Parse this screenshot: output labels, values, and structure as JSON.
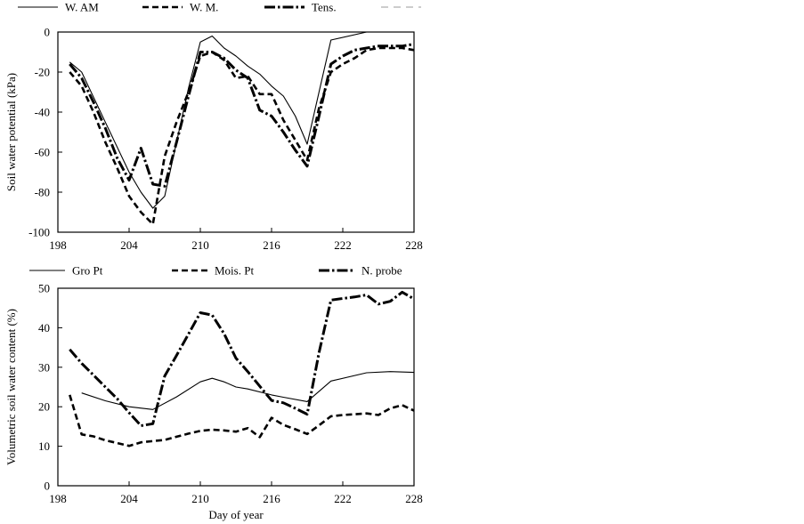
{
  "chart_data": [
    {
      "type": "line",
      "ylabel": "Soil water potential (kPa)",
      "xlabel": "",
      "xlim": [
        198,
        228
      ],
      "ylim": [
        -100,
        0
      ],
      "xticks": [
        198,
        204,
        210,
        216,
        222,
        228
      ],
      "xtick_labels": [
        "198",
        "204",
        "210",
        "216",
        "222",
        "228"
      ],
      "yticks": [
        0,
        -20,
        -40,
        -60,
        -80,
        -100
      ],
      "ytick_labels": [
        "0",
        "-20",
        "-40",
        "-60",
        "-80",
        "-100"
      ],
      "grid": false,
      "legend_position": "top",
      "series": [
        {
          "name": "W. AM",
          "style": "solid-thin",
          "x": [
            199,
            200,
            202,
            204,
            205,
            206,
            207,
            208,
            209,
            210,
            211,
            212,
            213,
            214,
            215,
            216,
            217,
            218,
            219,
            220,
            221,
            224,
            225,
            226,
            227,
            228
          ],
          "y": [
            -15,
            -20,
            -45,
            -70,
            -80,
            -88,
            -82,
            -55,
            -28,
            -5,
            -2,
            -8,
            -12,
            -17,
            -21,
            -27,
            -32,
            -42,
            -56,
            -30,
            -4,
            0,
            0,
            0,
            0,
            0
          ]
        },
        {
          "name": "W. M.",
          "style": "dashed",
          "x": [
            199,
            200,
            201,
            202,
            203,
            204,
            205,
            206,
            207,
            208,
            209,
            210,
            211,
            212,
            213,
            214,
            215,
            216,
            217,
            218,
            219,
            220,
            221,
            222,
            223,
            224,
            225,
            226,
            227,
            228
          ],
          "y": [
            -20,
            -27,
            -40,
            -55,
            -68,
            -82,
            -90,
            -96,
            -62,
            -45,
            -30,
            -12,
            -10,
            -14,
            -23,
            -22,
            -31,
            -31,
            -44,
            -54,
            -64,
            -38,
            -20,
            -16,
            -13,
            -9,
            -8,
            -8,
            -8,
            -9
          ]
        },
        {
          "name": "Tens.",
          "style": "dash-dot-thick",
          "x": [
            199,
            200,
            201,
            202,
            203,
            204,
            205,
            206,
            207,
            208,
            209,
            210,
            211,
            212,
            213,
            214,
            215,
            216,
            217,
            218,
            219,
            220,
            221,
            222,
            223,
            224,
            225,
            226,
            227,
            228
          ],
          "y": [
            -16,
            -23,
            -35,
            -48,
            -63,
            -74,
            -58,
            -76,
            -77,
            -55,
            -32,
            -10,
            -10,
            -13,
            -19,
            -23,
            -39,
            -42,
            -50,
            -59,
            -67,
            -42,
            -16,
            -12,
            -9,
            -8,
            -7,
            -7,
            -7,
            -6
          ]
        },
        {
          "name": "",
          "style": "dashed-light",
          "x": [],
          "y": []
        }
      ]
    },
    {
      "type": "line",
      "ylabel": "Volumetric soil water content (%)",
      "xlabel": "Day of year",
      "xlim": [
        198,
        228
      ],
      "ylim": [
        0,
        50
      ],
      "xticks": [
        198,
        204,
        210,
        216,
        222,
        228
      ],
      "xtick_labels": [
        "198",
        "204",
        "210",
        "216",
        "222",
        "228"
      ],
      "yticks": [
        0,
        10,
        20,
        30,
        40,
        50
      ],
      "ytick_labels": [
        "0",
        "10",
        "20",
        "30",
        "40",
        "50"
      ],
      "grid": false,
      "legend_position": "top",
      "series": [
        {
          "name": "Gro Pt",
          "style": "solid-thin",
          "x": [
            200,
            202,
            204,
            206,
            208,
            210,
            211,
            212,
            213,
            214,
            216,
            217,
            219,
            221,
            224,
            226,
            228
          ],
          "y": [
            23.5,
            21.5,
            20,
            19.3,
            22.5,
            26.3,
            27.2,
            26.3,
            25,
            24.5,
            23,
            22.4,
            21.3,
            26.5,
            28.6,
            28.9,
            28.7
          ]
        },
        {
          "name": "Mois. Pt",
          "style": "dashed",
          "x": [
            199,
            200,
            201,
            202,
            203,
            204,
            205,
            206,
            207,
            208,
            209,
            210,
            211,
            212,
            213,
            214,
            215,
            216,
            217,
            218,
            219,
            220,
            221,
            222,
            223,
            224,
            225,
            226,
            227,
            228
          ],
          "y": [
            23,
            13,
            12.5,
            11.5,
            10.8,
            10.1,
            11,
            11.3,
            11.6,
            12.4,
            13.2,
            13.9,
            14.2,
            14,
            13.7,
            14.6,
            12.3,
            17.2,
            15.4,
            14.3,
            13.1,
            15.3,
            17.6,
            17.9,
            18.1,
            18.3,
            17.9,
            19.6,
            20.4,
            19
          ]
        },
        {
          "name": "N. probe",
          "style": "dash-dot-thick",
          "x": [
            199,
            200,
            201,
            202,
            203,
            204,
            205,
            206,
            207,
            208,
            209,
            210,
            211,
            212,
            213,
            214,
            215,
            216,
            217,
            218,
            219,
            220,
            221,
            222,
            223,
            224,
            225,
            226,
            227,
            228
          ],
          "y": [
            34.5,
            31,
            28,
            25,
            22,
            18.5,
            15.2,
            15.7,
            27.8,
            33,
            38.4,
            43.8,
            43.2,
            38.5,
            32.3,
            28.9,
            25.2,
            21.6,
            21,
            19.6,
            18.1,
            33.7,
            47,
            47.4,
            47.8,
            48.3,
            46,
            46.7,
            49,
            47.3
          ]
        }
      ]
    }
  ]
}
